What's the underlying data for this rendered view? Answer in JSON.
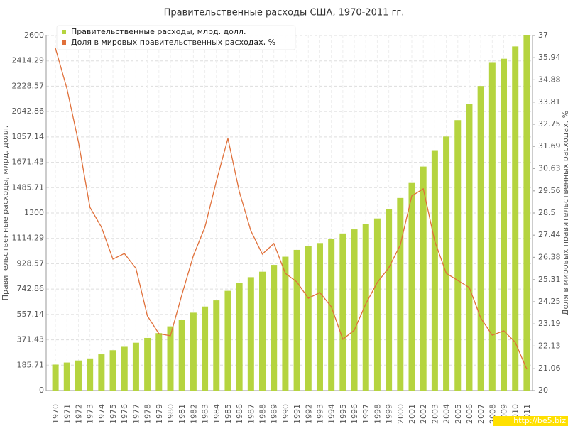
{
  "chart_data": {
    "type": "bar-line",
    "title": "Правительственные расходы США, 1970-2011 гг.",
    "y_label": "Правительственные расходы, млрд. долл.",
    "y2_label": "Доля в мировых правительственных расходах, %",
    "watermark": "http://be5.biz",
    "categories": [
      "1970",
      "1971",
      "1972",
      "1973",
      "1974",
      "1975",
      "1976",
      "1977",
      "1978",
      "1979",
      "1980",
      "1981",
      "1982",
      "1983",
      "1984",
      "1985",
      "1986",
      "1987",
      "1988",
      "1989",
      "1990",
      "1991",
      "1992",
      "1993",
      "1994",
      "1995",
      "1996",
      "1997",
      "1998",
      "1999",
      "2000",
      "2001",
      "2002",
      "2003",
      "2004",
      "2005",
      "2006",
      "2007",
      "2008",
      "2009",
      "2010",
      "2011"
    ],
    "series": [
      {
        "name": "Правительственные расходы, млрд. долл.",
        "color": "#b5d43f",
        "kind": "bar",
        "values": [
          190,
          205,
          220,
          235,
          265,
          295,
          320,
          350,
          385,
          420,
          470,
          520,
          570,
          615,
          660,
          730,
          790,
          830,
          870,
          920,
          980,
          1030,
          1060,
          1080,
          1110,
          1150,
          1180,
          1220,
          1260,
          1330,
          1410,
          1520,
          1640,
          1760,
          1860,
          1980,
          2100,
          2230,
          2400,
          2430,
          2520,
          2600
        ]
      },
      {
        "name": "Доля в мировых правительственных расходах, %",
        "color": "#e0703a",
        "kind": "line",
        "axis": "y2",
        "values": [
          36.39,
          34.45,
          31.9,
          28.77,
          27.82,
          26.29,
          26.56,
          25.85,
          23.57,
          22.72,
          22.62,
          24.59,
          26.46,
          27.82,
          30.03,
          32.07,
          29.52,
          27.65,
          26.53,
          27.04,
          25.61,
          25.2,
          24.42,
          24.69,
          24.01,
          22.45,
          22.89,
          24.15,
          25.17,
          25.88,
          26.97,
          29.32,
          29.66,
          27.14,
          25.61,
          25.27,
          24.93,
          23.47,
          22.65,
          22.86,
          22.31,
          21.02
        ]
      }
    ],
    "ylim": [
      0,
      2600
    ],
    "yticks": [
      0,
      185.71,
      371.43,
      557.14,
      742.86,
      928.57,
      1114.29,
      1300,
      1485.71,
      1671.43,
      1857.14,
      2042.86,
      2228.57,
      2414.29,
      2600
    ],
    "y2lim": [
      20,
      37
    ],
    "y2ticks": [
      20,
      21.06,
      22.13,
      23.19,
      24.25,
      25.31,
      26.38,
      27.44,
      28.5,
      29.56,
      30.63,
      31.69,
      32.75,
      33.81,
      34.88,
      35.94,
      37
    ],
    "grid": true,
    "legend": "top-left"
  }
}
